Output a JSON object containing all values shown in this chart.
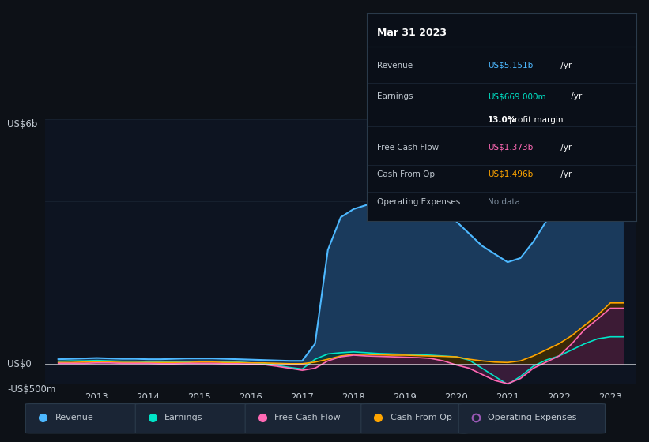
{
  "bg_color": "#0d1117",
  "plot_bg_color": "#0d1421",
  "grid_color": "#1e2a3a",
  "years": [
    2012.25,
    2012.5,
    2012.75,
    2013.0,
    2013.25,
    2013.5,
    2013.75,
    2014.0,
    2014.25,
    2014.5,
    2014.75,
    2015.0,
    2015.25,
    2015.5,
    2015.75,
    2016.0,
    2016.25,
    2016.5,
    2016.75,
    2017.0,
    2017.25,
    2017.5,
    2017.75,
    2018.0,
    2018.25,
    2018.5,
    2018.75,
    2019.0,
    2019.25,
    2019.5,
    2019.75,
    2020.0,
    2020.25,
    2020.5,
    2020.75,
    2021.0,
    2021.25,
    2021.5,
    2021.75,
    2022.0,
    2022.25,
    2022.5,
    2022.75,
    2023.0,
    2023.25
  ],
  "revenue": [
    0.12,
    0.13,
    0.14,
    0.15,
    0.14,
    0.13,
    0.13,
    0.12,
    0.12,
    0.13,
    0.14,
    0.14,
    0.14,
    0.13,
    0.12,
    0.11,
    0.1,
    0.09,
    0.08,
    0.08,
    0.5,
    2.8,
    3.6,
    3.8,
    3.9,
    3.85,
    3.9,
    3.95,
    3.9,
    3.8,
    3.7,
    3.5,
    3.2,
    2.9,
    2.7,
    2.5,
    2.6,
    3.0,
    3.5,
    4.0,
    4.4,
    4.8,
    5.0,
    5.15,
    5.15
  ],
  "earnings": [
    0.07,
    0.08,
    0.08,
    0.09,
    0.08,
    0.07,
    0.07,
    0.06,
    0.06,
    0.05,
    0.06,
    0.07,
    0.07,
    0.06,
    0.05,
    0.03,
    0.02,
    -0.03,
    -0.08,
    -0.12,
    0.12,
    0.25,
    0.28,
    0.3,
    0.28,
    0.26,
    0.25,
    0.24,
    0.23,
    0.22,
    0.2,
    0.18,
    0.1,
    -0.1,
    -0.3,
    -0.5,
    -0.3,
    -0.05,
    0.1,
    0.2,
    0.35,
    0.5,
    0.62,
    0.67,
    0.67
  ],
  "free_cash_flow": [
    0.02,
    0.02,
    0.02,
    0.03,
    0.03,
    0.02,
    0.02,
    0.02,
    0.01,
    0.01,
    0.02,
    0.02,
    0.02,
    0.01,
    0.01,
    0.0,
    -0.01,
    -0.05,
    -0.1,
    -0.15,
    -0.1,
    0.08,
    0.18,
    0.22,
    0.2,
    0.19,
    0.18,
    0.17,
    0.16,
    0.14,
    0.08,
    -0.02,
    -0.1,
    -0.25,
    -0.4,
    -0.48,
    -0.35,
    -0.1,
    0.05,
    0.2,
    0.5,
    0.85,
    1.1,
    1.37,
    1.37
  ],
  "cash_from_op": [
    0.04,
    0.04,
    0.05,
    0.05,
    0.05,
    0.04,
    0.04,
    0.04,
    0.04,
    0.04,
    0.04,
    0.05,
    0.05,
    0.04,
    0.04,
    0.03,
    0.03,
    0.02,
    0.01,
    0.01,
    0.05,
    0.12,
    0.2,
    0.24,
    0.24,
    0.23,
    0.22,
    0.22,
    0.21,
    0.2,
    0.19,
    0.18,
    0.12,
    0.08,
    0.05,
    0.04,
    0.08,
    0.2,
    0.35,
    0.5,
    0.7,
    0.95,
    1.2,
    1.5,
    1.5
  ],
  "revenue_color": "#4db8ff",
  "earnings_color": "#00e5c8",
  "free_cash_flow_color": "#ff69b4",
  "cash_from_op_color": "#ffa500",
  "operating_expenses_color": "#9b59b6",
  "revenue_fill_color": "#1a3a5c",
  "earnings_fill_color": "#0a3a3a",
  "free_cash_flow_fill_color": "#3d1a3a",
  "cash_from_op_fill_color": "#3d2800",
  "ylim": [
    -0.5,
    6.0
  ],
  "ytick_labels": [
    "-US$500m",
    "US$0",
    "US$6b"
  ],
  "xlabel_ticks": [
    2013,
    2014,
    2015,
    2016,
    2017,
    2018,
    2019,
    2020,
    2021,
    2022,
    2023
  ],
  "grid_lines_y": [
    -0.5,
    0.0,
    2.0,
    4.0,
    6.0
  ],
  "text_color": "#c0c8d0",
  "tooltip_bg": "#0a0f18",
  "tooltip_border": "#2a3a4a",
  "tooltip_title": "Mar 31 2023",
  "legend_items": [
    "Revenue",
    "Earnings",
    "Free Cash Flow",
    "Cash From Op",
    "Operating Expenses"
  ],
  "legend_colors": [
    "#4db8ff",
    "#00e5c8",
    "#ff69b4",
    "#ffa500",
    "#9b59b6"
  ],
  "tooltip_rows": [
    {
      "label": "Revenue",
      "value": "US$5.151b",
      "suffix": " /yr",
      "value_color": "#4db8ff",
      "extra": ""
    },
    {
      "label": "Earnings",
      "value": "US$669.000m",
      "suffix": " /yr",
      "value_color": "#00e5c8",
      "extra": "13.0% profit margin"
    },
    {
      "label": "Free Cash Flow",
      "value": "US$1.373b",
      "suffix": " /yr",
      "value_color": "#ff69b4",
      "extra": ""
    },
    {
      "label": "Cash From Op",
      "value": "US$1.496b",
      "suffix": " /yr",
      "value_color": "#ffa500",
      "extra": ""
    },
    {
      "label": "Operating Expenses",
      "value": "No data",
      "suffix": "",
      "value_color": "#7a8a9a",
      "extra": ""
    }
  ]
}
